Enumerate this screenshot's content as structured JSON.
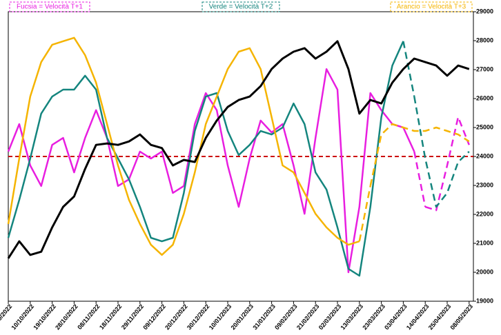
{
  "chart_data": {
    "type": "line",
    "categories": [
      "29/09/2022",
      null,
      "10/10/2022",
      null,
      "19/10/2022",
      null,
      "28/10/2022",
      null,
      "08/11/2022",
      null,
      "18/11/2022",
      null,
      "29/11/2022",
      null,
      "09/12/2022",
      null,
      "20/12/2022",
      null,
      "30/12/2022",
      null,
      "10/01/2023",
      null,
      "20/01/2023",
      null,
      "31/01/2023",
      null,
      "09/02/2023",
      null,
      "21/02/2023",
      null,
      "02/03/2023",
      null,
      "13/03/2023",
      null,
      "23/03/2023",
      null,
      "03/04/2023",
      null,
      "14/04/2023",
      null,
      "25/04/2023",
      null,
      "08/05/2023"
    ],
    "series": [
      {
        "color": "#000000",
        "values": [
          20480,
          21070,
          20600,
          20710,
          21550,
          22260,
          22620,
          23570,
          24400,
          24450,
          24400,
          24520,
          24760,
          24400,
          24290,
          23690,
          23880,
          23810,
          24640,
          25240,
          25710,
          25950,
          26070,
          26430,
          27020,
          27380,
          27620,
          27740,
          27380,
          27620,
          27980,
          27020,
          25480,
          25950,
          25830,
          26550,
          27020,
          27380,
          27260,
          27140,
          26790,
          27140,
          27020
        ]
      },
      {
        "name": "Fucsia = Velocità T+1",
        "color": "#e81ee0",
        "values": [
          24170,
          25120,
          23690,
          22980,
          24400,
          24640,
          23450,
          24640,
          25600,
          24640,
          22980,
          23210,
          24170,
          23930,
          24170,
          22740,
          22980,
          25120,
          26190,
          25600,
          23690,
          22260,
          23930,
          25240,
          24830,
          25120,
          23690,
          22020,
          24640,
          27020,
          26310,
          20000,
          22260,
          26190,
          25600,
          25120,
          25000,
          24170,
          null,
          null,
          null,
          null,
          null
        ],
        "dashed_values": [
          null,
          null,
          null,
          null,
          null,
          null,
          null,
          null,
          null,
          null,
          null,
          null,
          null,
          null,
          null,
          null,
          null,
          null,
          null,
          null,
          null,
          null,
          null,
          null,
          null,
          null,
          null,
          null,
          null,
          null,
          null,
          null,
          null,
          null,
          null,
          null,
          null,
          null,
          22260,
          22140,
          23690,
          25360,
          24400
        ]
      },
      {
        "name": "Verde = Velocità T+2",
        "color": "#14857e",
        "values": [
          21190,
          22500,
          23930,
          25480,
          26070,
          26310,
          26310,
          26790,
          26310,
          24640,
          23930,
          23210,
          22260,
          21190,
          21070,
          21190,
          22740,
          24880,
          26070,
          26190,
          24880,
          24050,
          24400,
          24880,
          24760,
          25000,
          25830,
          25120,
          23450,
          22860,
          21550,
          20120,
          19880,
          22260,
          25360,
          27140,
          27980,
          null,
          null,
          null,
          null,
          null,
          null
        ],
        "dashed_values": [
          null,
          null,
          null,
          null,
          null,
          null,
          null,
          null,
          null,
          null,
          null,
          null,
          null,
          null,
          null,
          null,
          null,
          null,
          null,
          null,
          null,
          null,
          null,
          null,
          null,
          null,
          null,
          null,
          null,
          null,
          null,
          null,
          null,
          null,
          null,
          null,
          null,
          26070,
          23930,
          22260,
          22740,
          23810,
          24170
        ]
      },
      {
        "name": "Arancio = Velocità T+3",
        "color": "#f5b400",
        "values": [
          21670,
          23930,
          26070,
          27260,
          27860,
          27980,
          28100,
          27500,
          26550,
          25120,
          23690,
          22500,
          21670,
          20950,
          20600,
          20950,
          22020,
          23450,
          25120,
          26070,
          27020,
          27620,
          27740,
          27020,
          25360,
          23690,
          23450,
          22740,
          22020,
          21550,
          21190,
          20950,
          21070,
          null,
          null,
          null,
          null,
          null,
          null,
          null,
          null,
          null,
          null
        ],
        "dashed_values": [
          null,
          null,
          null,
          null,
          null,
          null,
          null,
          null,
          null,
          null,
          null,
          null,
          null,
          null,
          null,
          null,
          null,
          null,
          null,
          null,
          null,
          null,
          null,
          null,
          null,
          null,
          null,
          null,
          null,
          null,
          null,
          null,
          null,
          22980,
          24760,
          25120,
          25000,
          24880,
          24880,
          25000,
          24880,
          24760,
          24520
        ]
      }
    ],
    "reference_line": 24000,
    "reference_color": "#cc0000",
    "ylim": [
      19000,
      29000
    ],
    "yticks": [
      19000,
      20000,
      21000,
      22000,
      23000,
      24000,
      25000,
      26000,
      27000,
      28000,
      29000
    ]
  }
}
